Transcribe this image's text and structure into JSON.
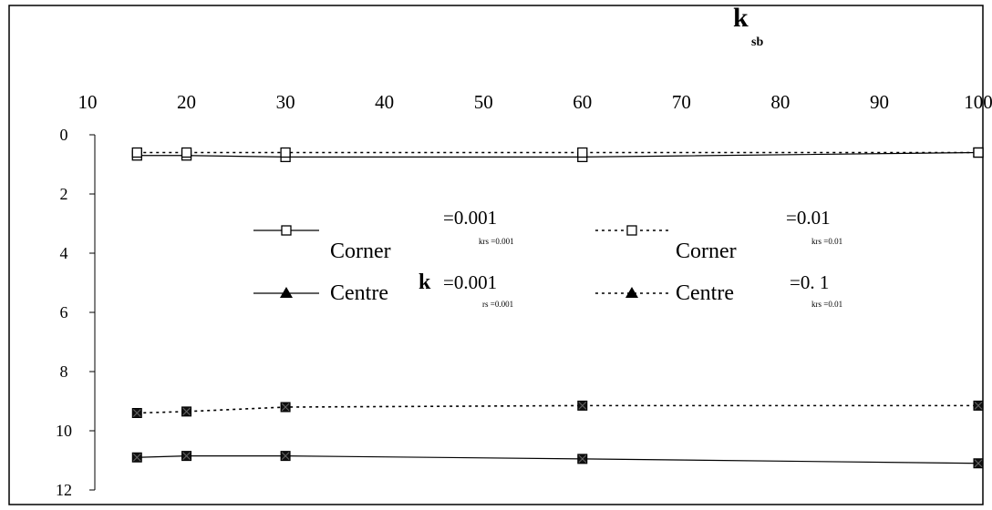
{
  "chart_data": {
    "type": "line",
    "x_axis": {
      "title": "k",
      "title_subscript": "sb",
      "position": "top",
      "range": [
        10,
        100
      ],
      "ticks": [
        "10",
        "20",
        "30",
        "40",
        "50",
        "60",
        "70",
        "80",
        "90",
        "100"
      ]
    },
    "y_axis": {
      "range": [
        0,
        12
      ],
      "inverted": true,
      "ticks": [
        "0",
        "2",
        "4",
        "6",
        "8",
        "10",
        "12"
      ]
    },
    "x": [
      15,
      20,
      30,
      60,
      100
    ],
    "series": [
      {
        "key": "corner_001",
        "marker": "square",
        "dash": "solid",
        "values": [
          0.7,
          0.7,
          0.75,
          0.75,
          0.6
        ]
      },
      {
        "key": "corner_01",
        "marker": "square",
        "dash": "dotted",
        "values": [
          0.6,
          0.6,
          0.6,
          0.6,
          0.6
        ]
      },
      {
        "key": "centre_001",
        "marker": "triangle",
        "dash": "solid",
        "values": [
          10.9,
          10.85,
          10.85,
          10.95,
          11.1
        ]
      },
      {
        "key": "centre_01",
        "marker": "triangle",
        "dash": "dotted",
        "values": [
          9.4,
          9.35,
          9.2,
          9.15,
          9.15
        ]
      }
    ],
    "legend": {
      "placement": "center",
      "entries": [
        {
          "line": "solid",
          "marker": "square",
          "label": "Corner",
          "value": "=0.001",
          "subnote": "krs =0.001"
        },
        {
          "line": "dotted",
          "marker": "square",
          "label": "Corner",
          "value": "=0.01",
          "subnote": "krs =0.01"
        },
        {
          "line": "solid",
          "marker": "triangle",
          "label": "Centre",
          "prefix": "k",
          "value": "=0.001",
          "subnote": "rs =0.001"
        },
        {
          "line": "dotted",
          "marker": "triangle",
          "label": "Centre",
          "value": "=0. 1",
          "subnote": "krs =0.01"
        }
      ]
    },
    "grid": false,
    "colors": {
      "line": "#000000",
      "frame": "#000000",
      "background": "#ffffff"
    }
  }
}
